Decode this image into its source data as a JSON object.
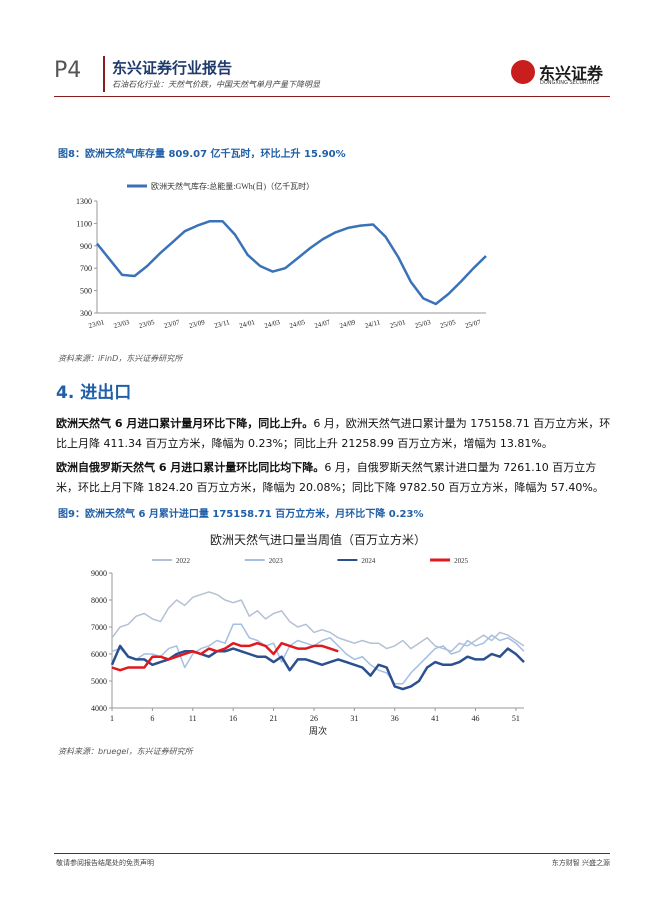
{
  "header": {
    "page": "P4",
    "brand": "东兴证券行业报告",
    "subtitle": "石油石化行业：天然气价跌，中国天然气单月产量下降明显",
    "logo": "东兴证券",
    "logo_en": "DONGXING SECURITIES"
  },
  "figure8": {
    "title": "图8：欧洲天然气库存量 809.07 亿千瓦时，环比上升 15.90%",
    "source": "资料来源：iFinD，东兴证券研究所"
  },
  "section": {
    "title": "4. 进出口"
  },
  "paragraphs": [
    {
      "lead": "欧洲天然气 6 月进口累计量月环比下降，同比上升。",
      "body": "6 月，欧洲天然气进口累计量为 175158.71 百万立方米，环比上月降 411.34 百万立方米，降幅为 0.23%；同比上升 21258.99 百万立方米，增幅为 13.81%。"
    },
    {
      "lead": "欧洲自俄罗斯天然气 6 月进口累计量环比同比均下降。",
      "body": "6 月，自俄罗斯天然气累计进口量为 7261.10 百万立方米，环比上月下降 1824.20 百万立方米，降幅为 20.08%；同比下降 9782.50 百万立方米，降幅为 57.40%。"
    }
  ],
  "figure9": {
    "title": "图9：欧洲天然气 6 月累计进口量 175158.71 百万立方米，月环比下降 0.23%",
    "source": "资料来源：bruegel，东兴证券研究所"
  },
  "footer": {
    "left": "敬请参阅报告结尾处的免责声明",
    "right": "东方财智 兴盛之源"
  },
  "chart_data": [
    {
      "type": "line",
      "categories": [
        "23/01",
        null,
        "23/03",
        null,
        "23/05",
        null,
        "23/07",
        null,
        "23/09",
        null,
        "23/11",
        null,
        "24/01",
        null,
        "24/03",
        null,
        "24/05",
        null,
        "24/07",
        null,
        "24/09",
        null,
        "24/11",
        null,
        "25/01",
        null,
        "25/03",
        null,
        "25/05",
        null,
        "25/07",
        null
      ],
      "series": [
        {
          "name": "欧洲天然气库存:总能量:GWh(日)（亿千瓦时）",
          "color": "#3a72b8",
          "values": [
            920,
            780,
            640,
            630,
            720,
            830,
            930,
            1030,
            1080,
            1120,
            1120,
            1000,
            820,
            720,
            670,
            700,
            790,
            880,
            960,
            1020,
            1060,
            1080,
            1090,
            980,
            800,
            580,
            430,
            380,
            470,
            580,
            700,
            809
          ]
        }
      ],
      "ylim": [
        300,
        1300
      ],
      "yticks": [
        300,
        500,
        700,
        900,
        1100,
        1300
      ],
      "grid": false,
      "legend": "top"
    },
    {
      "type": "line",
      "title": "欧洲天然气进口量当周值（百万立方米）",
      "xlabel": "周次",
      "x": [
        1,
        2,
        3,
        4,
        5,
        6,
        7,
        8,
        9,
        10,
        11,
        12,
        13,
        14,
        15,
        16,
        17,
        18,
        19,
        20,
        21,
        22,
        23,
        24,
        25,
        26,
        27,
        28,
        29,
        30,
        31,
        32,
        33,
        34,
        35,
        36,
        37,
        38,
        39,
        40,
        41,
        42,
        43,
        44,
        45,
        46,
        47,
        48,
        49,
        50,
        51,
        52
      ],
      "series": [
        {
          "name": "2022",
          "color": "#b4c0d4",
          "values": [
            6600,
            7000,
            7100,
            7400,
            7500,
            7300,
            7200,
            7700,
            8000,
            7800,
            8100,
            8200,
            8300,
            8200,
            8000,
            7900,
            8000,
            7400,
            7600,
            7300,
            7500,
            7600,
            7200,
            7000,
            7100,
            6800,
            6900,
            6800,
            6600,
            6500,
            6400,
            6500,
            6400,
            6400,
            6200,
            6300,
            6500,
            6200,
            6400,
            6600,
            6300,
            6200,
            6100,
            6400,
            6300,
            6500,
            6700,
            6500,
            6800,
            6700,
            6500,
            6300
          ]
        },
        {
          "name": "2023",
          "color": "#a3bfe3",
          "values": [
            6100,
            6200,
            5900,
            5800,
            6000,
            6000,
            5900,
            6200,
            6300,
            5500,
            6000,
            6200,
            6300,
            6500,
            6400,
            7100,
            7100,
            6600,
            6500,
            6300,
            6400,
            5700,
            6300,
            6500,
            6400,
            6300,
            6500,
            6600,
            6300,
            6000,
            5800,
            5900,
            5600,
            5400,
            5300,
            4900,
            4900,
            5300,
            5600,
            5900,
            6200,
            6300,
            6000,
            6100,
            6500,
            6300,
            6400,
            6700,
            6500,
            6600,
            6400,
            6100
          ]
        },
        {
          "name": "2024",
          "color": "#2b4f8f",
          "values": [
            5600,
            6300,
            5900,
            5800,
            5800,
            5600,
            5700,
            5800,
            6000,
            6100,
            6100,
            6000,
            5900,
            6100,
            6100,
            6200,
            6100,
            6000,
            5900,
            5900,
            5700,
            5900,
            5400,
            5800,
            5800,
            5700,
            5600,
            5700,
            5800,
            5700,
            5600,
            5500,
            5200,
            5600,
            5500,
            4800,
            4700,
            4800,
            5000,
            5500,
            5700,
            5600,
            5600,
            5700,
            5900,
            5800,
            5800,
            6000,
            5900,
            6200,
            6000,
            5700
          ]
        },
        {
          "name": "2025",
          "color": "#e0191e",
          "values": [
            5500,
            5400,
            5500,
            5500,
            5500,
            5900,
            5900,
            5800,
            5900,
            6000,
            6100,
            6000,
            6200,
            6100,
            6200,
            6400,
            6300,
            6300,
            6400,
            6300,
            6000,
            6400,
            6300,
            6200,
            6200,
            6300,
            6300,
            6200,
            6100,
            null,
            null,
            null,
            null,
            null,
            null,
            null,
            null,
            null,
            null,
            null,
            null,
            null,
            null,
            null,
            null,
            null,
            null,
            null,
            null,
            null,
            null,
            null
          ]
        }
      ],
      "xlim": [
        1,
        52
      ],
      "xticks": [
        1,
        6,
        11,
        16,
        21,
        26,
        31,
        36,
        41,
        46,
        51
      ],
      "ylim": [
        4000,
        9000
      ],
      "yticks": [
        4000,
        5000,
        6000,
        7000,
        8000,
        9000
      ],
      "grid": false,
      "legend": "top"
    }
  ]
}
